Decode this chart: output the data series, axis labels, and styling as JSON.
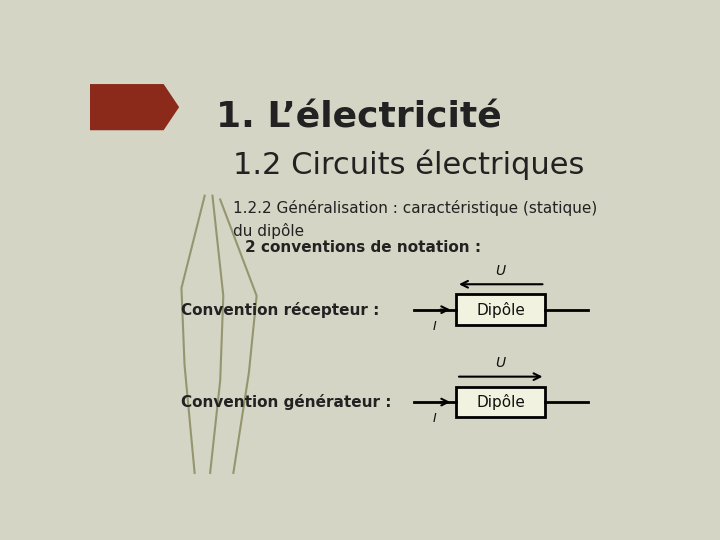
{
  "bg_color": "#d4d5c4",
  "title1": "1. L’électricité",
  "title2": "1.2 Circuits électriques",
  "subtitle": "1.2.2 Généralisation : caractéristique (statique)\ndu dipôle",
  "bold_text": "2 conventions de notation :",
  "label1": "Convention récepteur :",
  "label2": "Convention générateur :",
  "dipole_text": "Dipôle",
  "U_label": "U",
  "I_label": "I",
  "box_color": "#f2f2e0",
  "box_edge_color": "#000000",
  "title1_color": "#222222",
  "title2_color": "#222222",
  "subtitle_color": "#222222",
  "bold_color": "#222222",
  "leaf_color": "#8a8a60",
  "red_shape_color": "#8b2a1a"
}
